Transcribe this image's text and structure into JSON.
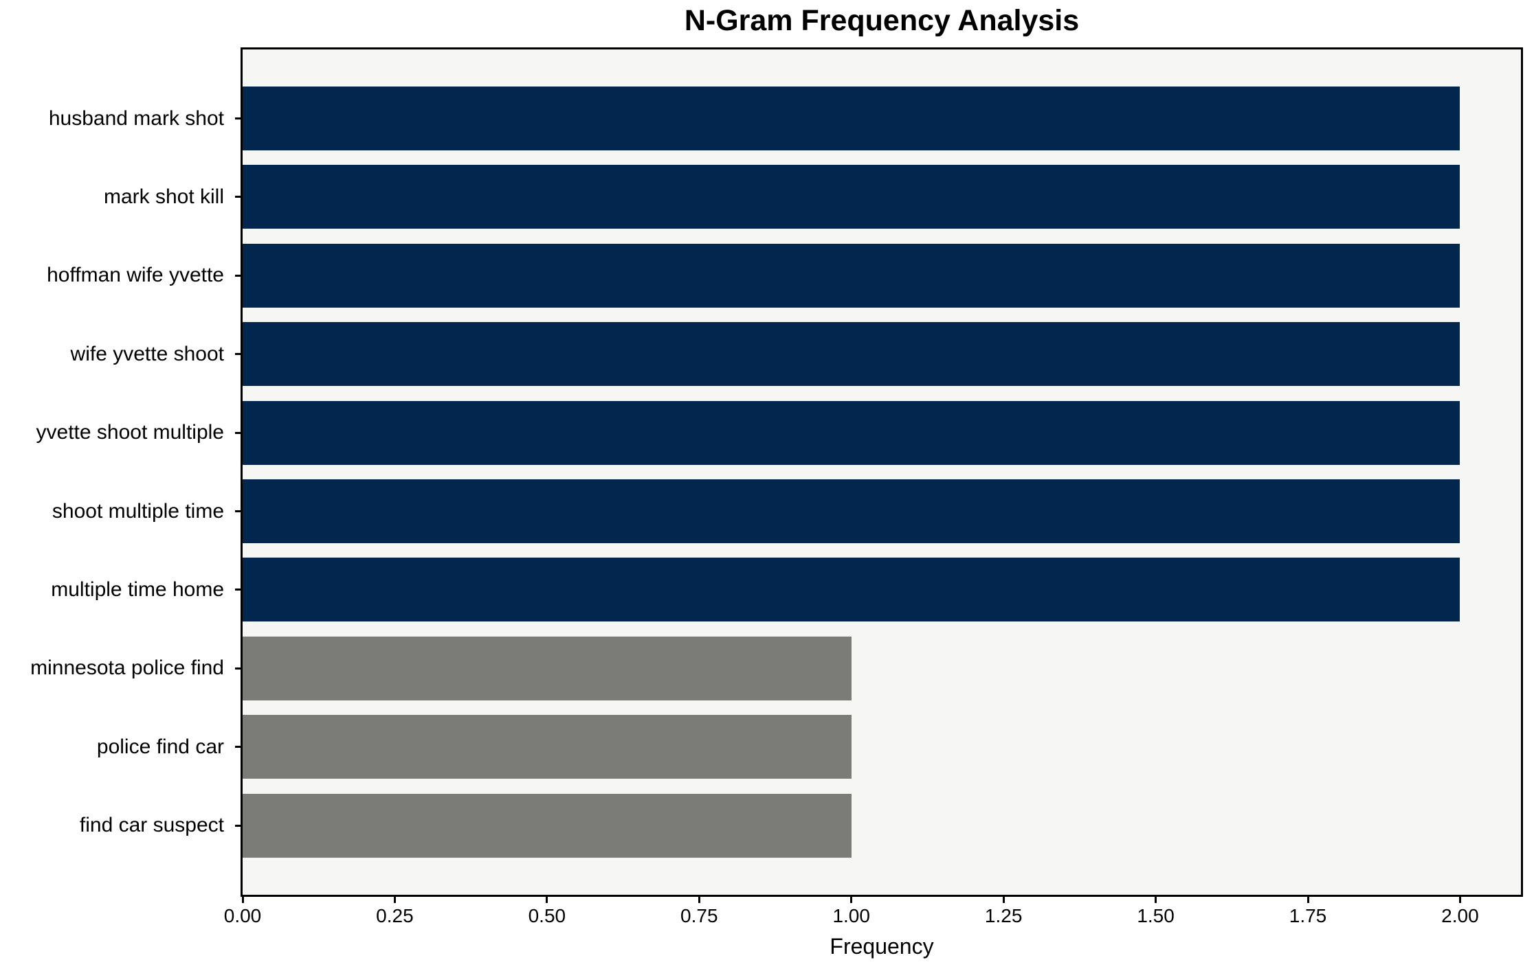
{
  "chart_data": {
    "type": "bar",
    "orientation": "horizontal",
    "title": "N-Gram Frequency Analysis",
    "xlabel": "Frequency",
    "ylabel": "",
    "categories": [
      "husband mark shot",
      "mark shot kill",
      "hoffman wife yvette",
      "wife yvette shoot",
      "yvette shoot multiple",
      "shoot multiple time",
      "multiple time home",
      "minnesota police find",
      "police find car",
      "find car suspect"
    ],
    "values": [
      2,
      2,
      2,
      2,
      2,
      2,
      2,
      1,
      1,
      1
    ],
    "bar_colors": [
      "#02264d",
      "#02264d",
      "#02264d",
      "#02264d",
      "#02264d",
      "#02264d",
      "#02264d",
      "#7b7b78",
      "#7b7b78",
      "#7b7b78"
    ],
    "xlim": [
      0,
      2.1
    ],
    "xtick_values": [
      0,
      0.25,
      0.5,
      0.75,
      1.0,
      1.25,
      1.5,
      1.75,
      2.0
    ],
    "xtick_labels": [
      "0.00",
      "0.25",
      "0.50",
      "0.75",
      "1.00",
      "1.25",
      "1.50",
      "1.75",
      "2.00"
    ],
    "grid": false,
    "legend": null,
    "colors": {
      "frequency_2_bar": "#02264d",
      "frequency_1_bar": "#7b7b78",
      "plot_background": "#f6f6f5",
      "figure_background": "#ffffff",
      "spine": "#000000",
      "text": "#000000"
    }
  }
}
